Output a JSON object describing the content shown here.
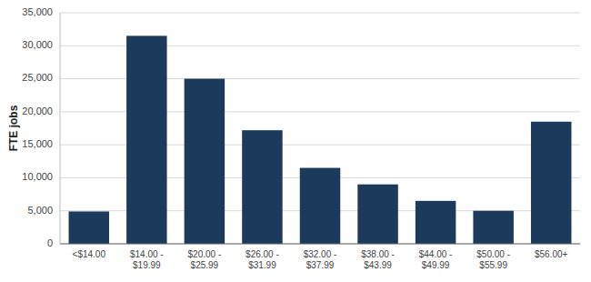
{
  "chart_data": {
    "type": "bar",
    "categories": [
      "<$14.00",
      "$14.00 -\n$19.99",
      "$20.00 -\n$25.99",
      "$26.00 -\n$31.99",
      "$32.00 -\n$37.99",
      "$38.00 -\n$43.99",
      "$44.00 -\n$49.99",
      "$50.00 -\n$55.99",
      "$56.00+"
    ],
    "values": [
      4900,
      31500,
      25000,
      17200,
      11500,
      9000,
      6500,
      5000,
      18500
    ],
    "color": "#1b3a5c",
    "ylabel": "FTE jobs",
    "ylim": [
      0,
      35000
    ],
    "yticks": [
      0,
      {
        "value": 5000,
        "label": "5,000"
      },
      {
        "value": 10000,
        "label": "10,000"
      },
      {
        "value": 15000,
        "label": "15,000"
      },
      {
        "value": 20000,
        "label": "20,000"
      },
      {
        "value": 25000,
        "label": "25,000"
      },
      {
        "value": 30000,
        "label": "30,000"
      },
      {
        "value": 35000,
        "label": "35,000"
      }
    ],
    "grid": true
  }
}
